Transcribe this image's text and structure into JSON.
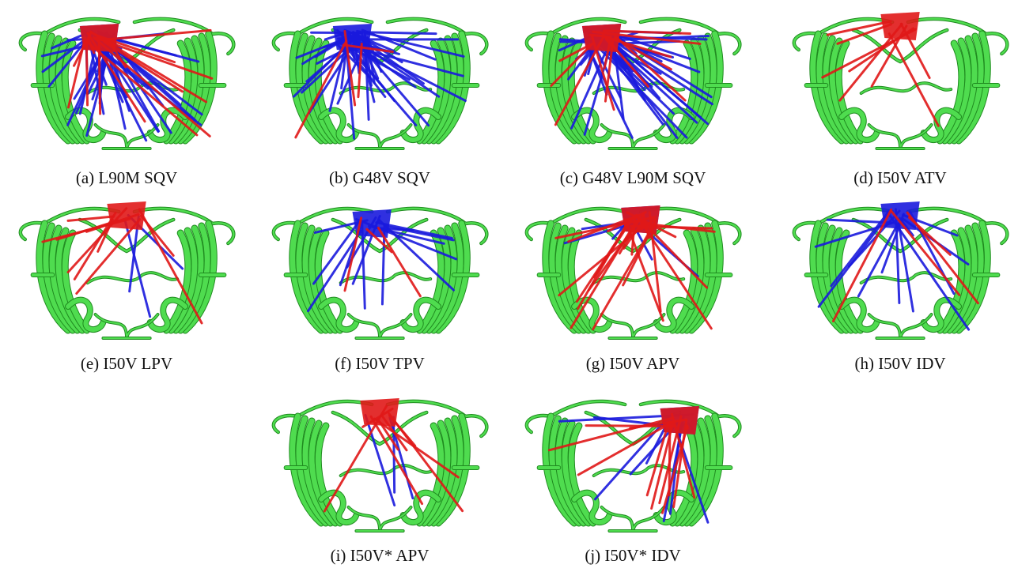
{
  "captions": [
    "(a) L90M SQV",
    "(b) G48V SQV",
    "(c) G48V L90M SQV",
    "(d) I50V ATV",
    "(e) I50V LPV",
    "(f) I50V TPV",
    "(g) I50V APV",
    "(h) I50V IDV",
    "(i) I50V* APV",
    "(j) I50V* IDV"
  ]
}
